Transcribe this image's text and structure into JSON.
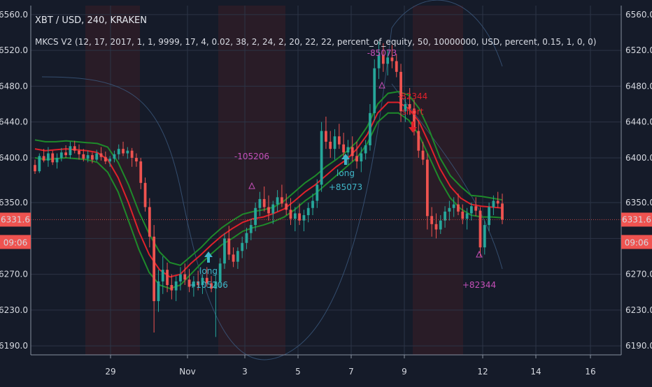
{
  "header": {
    "symbol": "XBT / USD, 240, KRAKEN"
  },
  "indicator": {
    "text": "MKCS V2 (12, 17, 2017, 1, 1, 9999, 17, 4, 0.02, 38, 2, 24, 2, 20, 22, 22, percent_of_equity, 50, 10000000, USD, percent, 0.15, 1, 0, 0)"
  },
  "colors": {
    "background": "#151b29",
    "up": "#26a69a",
    "down": "#ef5350",
    "grid": "#2c3446",
    "shade": "#3a1d26",
    "upper_band": "#1e8a2a",
    "lower_band": "#1e8a2a",
    "mid_band": "#e0212a",
    "annotation_long": "#3fb6c8",
    "annotation_trade": "#c44fb8"
  },
  "price_badge": {
    "value": "6331.6",
    "countdown": "09:06"
  },
  "chart_data": {
    "type": "candlestick",
    "title": "XBT / USD, 240, KRAKEN",
    "y_ticks": [
      "6560.0",
      "6520.0",
      "6480.0",
      "6440.0",
      "6400.0",
      "6350.0",
      "6310.0",
      "6270.0",
      "6230.0",
      "6190.0"
    ],
    "x_ticks": [
      "29",
      "Nov",
      "3",
      "5",
      "7",
      "9",
      "12",
      "14",
      "16"
    ],
    "ylim": [
      6180,
      6570
    ],
    "candles": [
      [
        6392,
        6398,
        6382,
        6385
      ],
      [
        6385,
        6405,
        6383,
        6402
      ],
      [
        6402,
        6410,
        6395,
        6397
      ],
      [
        6397,
        6412,
        6390,
        6405
      ],
      [
        6405,
        6408,
        6392,
        6395
      ],
      [
        6395,
        6405,
        6388,
        6400
      ],
      [
        6400,
        6411,
        6396,
        6406
      ],
      [
        6406,
        6414,
        6400,
        6403
      ],
      [
        6403,
        6418,
        6399,
        6413
      ],
      [
        6413,
        6419,
        6405,
        6408
      ],
      [
        6408,
        6415,
        6398,
        6404
      ],
      [
        6404,
        6410,
        6396,
        6399
      ],
      [
        6399,
        6408,
        6395,
        6403
      ],
      [
        6403,
        6406,
        6394,
        6398
      ],
      [
        6398,
        6409,
        6396,
        6405
      ],
      [
        6405,
        6412,
        6397,
        6401
      ],
      [
        6401,
        6407,
        6393,
        6396
      ],
      [
        6396,
        6402,
        6390,
        6399
      ],
      [
        6399,
        6408,
        6395,
        6404
      ],
      [
        6404,
        6415,
        6398,
        6410
      ],
      [
        6410,
        6418,
        6402,
        6405
      ],
      [
        6405,
        6412,
        6399,
        6408
      ],
      [
        6408,
        6411,
        6390,
        6400
      ],
      [
        6400,
        6405,
        6390,
        6396
      ],
      [
        6396,
        6400,
        6365,
        6372
      ],
      [
        6372,
        6378,
        6340,
        6345
      ],
      [
        6345,
        6355,
        6300,
        6312
      ],
      [
        6312,
        6325,
        6205,
        6240
      ],
      [
        6240,
        6275,
        6228,
        6262
      ],
      [
        6262,
        6290,
        6248,
        6275
      ],
      [
        6275,
        6283,
        6250,
        6258
      ],
      [
        6258,
        6270,
        6242,
        6252
      ],
      [
        6252,
        6268,
        6240,
        6262
      ],
      [
        6262,
        6278,
        6252,
        6270
      ],
      [
        6270,
        6282,
        6258,
        6264
      ],
      [
        6264,
        6276,
        6250,
        6256
      ],
      [
        6256,
        6268,
        6245,
        6262
      ],
      [
        6262,
        6274,
        6252,
        6258
      ],
      [
        6258,
        6270,
        6248,
        6266
      ],
      [
        6266,
        6278,
        6256,
        6260
      ],
      [
        6260,
        6268,
        6250,
        6254
      ],
      [
        6254,
        6270,
        6200,
        6262
      ],
      [
        6262,
        6288,
        6255,
        6282
      ],
      [
        6282,
        6316,
        6276,
        6310
      ],
      [
        6310,
        6324,
        6286,
        6292
      ],
      [
        6292,
        6300,
        6278,
        6284
      ],
      [
        6284,
        6300,
        6276,
        6296
      ],
      [
        6296,
        6312,
        6288,
        6305
      ],
      [
        6305,
        6322,
        6298,
        6316
      ],
      [
        6316,
        6332,
        6308,
        6325
      ],
      [
        6325,
        6350,
        6318,
        6344
      ],
      [
        6344,
        6362,
        6335,
        6354
      ],
      [
        6354,
        6368,
        6340,
        6345
      ],
      [
        6345,
        6358,
        6330,
        6338
      ],
      [
        6338,
        6352,
        6326,
        6348
      ],
      [
        6348,
        6364,
        6340,
        6356
      ],
      [
        6356,
        6370,
        6345,
        6349
      ],
      [
        6349,
        6360,
        6336,
        6342
      ],
      [
        6342,
        6355,
        6325,
        6332
      ],
      [
        6332,
        6345,
        6318,
        6338
      ],
      [
        6338,
        6349,
        6325,
        6330
      ],
      [
        6330,
        6342,
        6318,
        6336
      ],
      [
        6336,
        6350,
        6328,
        6344
      ],
      [
        6344,
        6360,
        6336,
        6352
      ],
      [
        6352,
        6376,
        6344,
        6370
      ],
      [
        6370,
        6440,
        6362,
        6430
      ],
      [
        6430,
        6446,
        6410,
        6418
      ],
      [
        6418,
        6430,
        6400,
        6410
      ],
      [
        6410,
        6432,
        6398,
        6424
      ],
      [
        6424,
        6438,
        6410,
        6415
      ],
      [
        6415,
        6428,
        6400,
        6406
      ],
      [
        6406,
        6420,
        6392,
        6412
      ],
      [
        6412,
        6424,
        6396,
        6402
      ],
      [
        6402,
        6418,
        6388,
        6396
      ],
      [
        6396,
        6412,
        6384,
        6405
      ],
      [
        6405,
        6420,
        6398,
        6414
      ],
      [
        6414,
        6460,
        6408,
        6450
      ],
      [
        6450,
        6510,
        6442,
        6500
      ],
      [
        6500,
        6530,
        6488,
        6515
      ],
      [
        6515,
        6528,
        6496,
        6505
      ],
      [
        6505,
        6520,
        6492,
        6512
      ],
      [
        6512,
        6526,
        6500,
        6508
      ],
      [
        6508,
        6516,
        6490,
        6496
      ],
      [
        6496,
        6505,
        6440,
        6452
      ],
      [
        6452,
        6468,
        6440,
        6460
      ],
      [
        6460,
        6478,
        6448,
        6455
      ],
      [
        6455,
        6465,
        6425,
        6430
      ],
      [
        6430,
        6442,
        6400,
        6408
      ],
      [
        6408,
        6418,
        6392,
        6398
      ],
      [
        6398,
        6405,
        6320,
        6335
      ],
      [
        6335,
        6345,
        6312,
        6326
      ],
      [
        6326,
        6338,
        6310,
        6320
      ],
      [
        6320,
        6336,
        6315,
        6330
      ],
      [
        6330,
        6346,
        6322,
        6340
      ],
      [
        6340,
        6352,
        6330,
        6344
      ],
      [
        6344,
        6356,
        6334,
        6348
      ],
      [
        6348,
        6360,
        6336,
        6340
      ],
      [
        6340,
        6348,
        6326,
        6332
      ],
      [
        6332,
        6344,
        6320,
        6338
      ],
      [
        6338,
        6350,
        6330,
        6346
      ],
      [
        6346,
        6356,
        6335,
        6341
      ],
      [
        6341,
        6345,
        6290,
        6300
      ],
      [
        6300,
        6330,
        6292,
        6325
      ],
      [
        6325,
        6350,
        6318,
        6345
      ],
      [
        6345,
        6358,
        6336,
        6352
      ],
      [
        6352,
        6362,
        6344,
        6349
      ],
      [
        6349,
        6360,
        6326,
        6331
      ]
    ],
    "upper_band": [
      6420,
      6418,
      6418,
      6419,
      6418,
      6417,
      6416,
      6412,
      6395,
      6370,
      6340,
      6315,
      6295,
      6283,
      6280,
      6290,
      6300,
      6312,
      6322,
      6330,
      6337,
      6340,
      6342,
      6345,
      6352,
      6362,
      6372,
      6380,
      6390,
      6398,
      6407,
      6418,
      6435,
      6460,
      6472,
      6474,
      6470,
      6455,
      6430,
      6400,
      6380,
      6368,
      6358,
      6357,
      6355,
      6353
    ],
    "mid_band": [
      6410,
      6408,
      6409,
      6410,
      6409,
      6408,
      6406,
      6398,
      6378,
      6350,
      6318,
      6292,
      6275,
      6267,
      6270,
      6282,
      6292,
      6303,
      6313,
      6321,
      6328,
      6332,
      6334,
      6338,
      6343,
      6352,
      6362,
      6370,
      6380,
      6390,
      6398,
      6410,
      6426,
      6450,
      6462,
      6462,
      6455,
      6440,
      6415,
      6388,
      6368,
      6355,
      6348,
      6346,
      6345,
      6344
    ],
    "lower_band": [
      6400,
      6398,
      6399,
      6400,
      6399,
      6398,
      6395,
      6384,
      6362,
      6330,
      6298,
      6272,
      6258,
      6254,
      6258,
      6270,
      6282,
      6293,
      6303,
      6310,
      6318,
      6322,
      6325,
      6329,
      6334,
      6342,
      6352,
      6360,
      6370,
      6380,
      6390,
      6400,
      6416,
      6440,
      6450,
      6450,
      6442,
      6425,
      6400,
      6375,
      6355,
      6343,
      6336,
      6334,
      6334,
      6333
    ],
    "annotations": [
      {
        "text": "long",
        "value": "+105206",
        "kind": "long"
      },
      {
        "text": "-105206",
        "kind": "trade"
      },
      {
        "text": "long",
        "value": "+85073",
        "kind": "long"
      },
      {
        "text": "-85073",
        "kind": "trade"
      },
      {
        "text": "-82344",
        "kind": "exit"
      },
      {
        "text": "short",
        "kind": "exit"
      },
      {
        "text": "+82344",
        "kind": "trade"
      }
    ]
  }
}
